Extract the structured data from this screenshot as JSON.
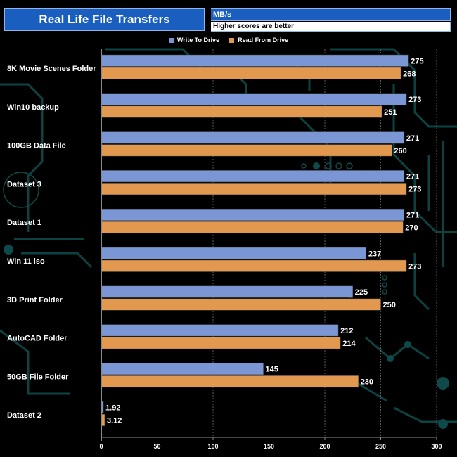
{
  "title": "Real Life File Transfers",
  "unit": "MB/s",
  "note": "Higher scores are better",
  "colors": {
    "write": "#7a96d4",
    "read": "#e2984e",
    "title_bg": "#1a5fc0"
  },
  "chart_data": {
    "type": "bar",
    "orientation": "horizontal",
    "title": "Real Life File Transfers",
    "xlabel": "MB/s",
    "ylabel": "",
    "xlim": [
      0,
      300
    ],
    "ticks": [
      0,
      50,
      100,
      150,
      200,
      250,
      300
    ],
    "tick_labels": [
      "0",
      "50",
      "100",
      "150",
      "200",
      "250",
      "300"
    ],
    "legend_position": "top-center",
    "categories": [
      "8K Movie Scenes Folder",
      "Win10 backup",
      "100GB Data File",
      "Dataset 3",
      "Dataset 1",
      "Win 11 iso",
      "3D Print Folder",
      "AutoCAD Folder",
      "50GB File Folder",
      "Dataset 2"
    ],
    "series": [
      {
        "name": "Write To  Drive",
        "color": "#7a96d4",
        "values": [
          275,
          273,
          271,
          271,
          271,
          237,
          225,
          212,
          145,
          1.92
        ],
        "labels": [
          "275",
          "273",
          "271",
          "271",
          "271",
          "237",
          "225",
          "212",
          "145",
          "1.92"
        ]
      },
      {
        "name": "Read From  Drive",
        "color": "#e2984e",
        "values": [
          268,
          251,
          260,
          273,
          270,
          273,
          250,
          214,
          230,
          3.12
        ],
        "labels": [
          "268",
          "251",
          "260",
          "273",
          "270",
          "273",
          "250",
          "214",
          "230",
          "3.12"
        ]
      }
    ]
  }
}
